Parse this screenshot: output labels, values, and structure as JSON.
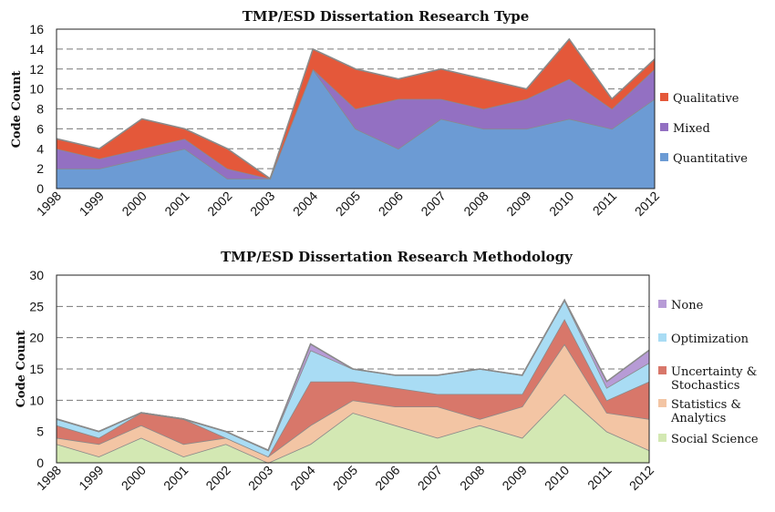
{
  "chart_data": [
    {
      "type": "area",
      "stacked": true,
      "title": "TMP/ESD Dissertation Research Type",
      "xlabel": "",
      "ylabel": "Code Count",
      "ylim": [
        0,
        16
      ],
      "yticks": [
        0,
        2,
        4,
        6,
        8,
        10,
        12,
        14,
        16
      ],
      "grid": true,
      "legend_position": "right",
      "categories": [
        "1998",
        "1999",
        "2000",
        "2001",
        "2002",
        "2003",
        "2004",
        "2005",
        "2006",
        "2007",
        "2008",
        "2009",
        "2010",
        "2011",
        "2012"
      ],
      "series": [
        {
          "name": "Quantitative",
          "color": "#6c9bd4",
          "values": [
            2,
            2,
            3,
            4,
            1,
            1,
            12,
            6,
            4,
            7,
            6,
            6,
            7,
            6,
            9
          ]
        },
        {
          "name": "Mixed",
          "color": "#9370c2",
          "values": [
            2,
            1,
            1,
            1,
            1,
            0,
            0,
            2,
            5,
            2,
            2,
            3,
            4,
            2,
            3
          ]
        },
        {
          "name": "Qualitative",
          "color": "#e4583a",
          "values": [
            1,
            1,
            3,
            1,
            2,
            0,
            2,
            4,
            2,
            3,
            3,
            1,
            4,
            1,
            1
          ]
        }
      ],
      "legend_order": [
        "Qualitative",
        "Mixed",
        "Quantitative"
      ]
    },
    {
      "type": "area",
      "stacked": true,
      "title": "TMP/ESD Dissertation Research Methodology",
      "xlabel": "",
      "ylabel": "Code Count",
      "ylim": [
        0,
        30
      ],
      "yticks": [
        0,
        5,
        10,
        15,
        20,
        25,
        30
      ],
      "grid": true,
      "legend_position": "right",
      "categories": [
        "1998",
        "1999",
        "2000",
        "2001",
        "2002",
        "2003",
        "2004",
        "2005",
        "2006",
        "2007",
        "2008",
        "2009",
        "2010",
        "2011",
        "2012"
      ],
      "series": [
        {
          "name": "Social Science",
          "color": "#d3e8b3",
          "values": [
            3,
            1,
            4,
            1,
            3,
            0,
            3,
            8,
            6,
            4,
            6,
            4,
            11,
            5,
            2
          ]
        },
        {
          "name": "Statistics & Analytics",
          "color": "#f3c5a4",
          "values": [
            1,
            2,
            2,
            2,
            1,
            1,
            3,
            2,
            3,
            5,
            1,
            5,
            8,
            3,
            5
          ]
        },
        {
          "name": "Uncertainty & Stochastics",
          "color": "#d8776a",
          "values": [
            2,
            1,
            2,
            4,
            0,
            0,
            7,
            3,
            3,
            2,
            4,
            2,
            4,
            2,
            6
          ]
        },
        {
          "name": "Optimization",
          "color": "#a9dcf4",
          "values": [
            1,
            1,
            0,
            0,
            1,
            1,
            5,
            2,
            2,
            3,
            4,
            3,
            3,
            2,
            3
          ]
        },
        {
          "name": "None",
          "color": "#b79bd6",
          "values": [
            0,
            0,
            0,
            0,
            0,
            0,
            1,
            0,
            0,
            0,
            0,
            0,
            0,
            1,
            2
          ]
        }
      ],
      "legend_order": [
        "None",
        "Optimization",
        "Uncertainty & Stochastics",
        "Statistics & Analytics",
        "Social Science"
      ]
    }
  ]
}
